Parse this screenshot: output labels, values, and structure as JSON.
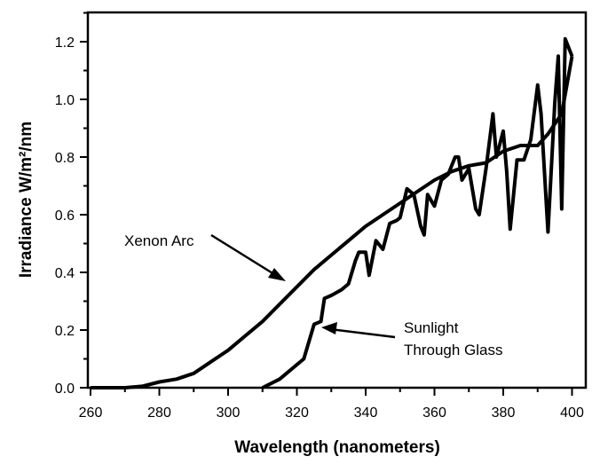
{
  "chart_data": {
    "type": "line",
    "title": "",
    "xlabel": "Wavelength (nanometers)",
    "ylabel": "Irradiance  W/m²/nm",
    "xlim": [
      260,
      404
    ],
    "ylim": [
      0,
      1.3
    ],
    "xticks": [
      260,
      280,
      300,
      320,
      340,
      360,
      380,
      400
    ],
    "yticks": [
      "0.0",
      "0.2",
      "0.4",
      "0.6",
      "0.8",
      "1.0",
      "1.2"
    ],
    "grid": false,
    "series": [
      {
        "name": "Xenon Arc",
        "x": [
          270,
          275,
          280,
          285,
          290,
          295,
          300,
          305,
          310,
          315,
          320,
          325,
          330,
          335,
          340,
          345,
          350,
          355,
          360,
          365,
          370,
          375,
          380,
          385,
          390,
          393,
          397,
          400
        ],
        "y": [
          0,
          0.005,
          0.02,
          0.03,
          0.05,
          0.09,
          0.13,
          0.18,
          0.23,
          0.29,
          0.35,
          0.41,
          0.46,
          0.51,
          0.56,
          0.6,
          0.64,
          0.68,
          0.72,
          0.75,
          0.77,
          0.78,
          0.82,
          0.84,
          0.84,
          0.88,
          0.95,
          1.15
        ]
      },
      {
        "name": "Sunlight Through Glass",
        "x": [
          310,
          315,
          320,
          322,
          325,
          327,
          328,
          330,
          333,
          335,
          337,
          338,
          340,
          341,
          343,
          345,
          347,
          349,
          350,
          352,
          354,
          356,
          357,
          358,
          360,
          362,
          364,
          366,
          367,
          368,
          370,
          372,
          373,
          375,
          377,
          378,
          380,
          381,
          382,
          384,
          386,
          388,
          390,
          391,
          393,
          395,
          396,
          397,
          398,
          400
        ],
        "y": [
          0,
          0.03,
          0.08,
          0.1,
          0.22,
          0.23,
          0.31,
          0.32,
          0.34,
          0.36,
          0.44,
          0.47,
          0.47,
          0.39,
          0.51,
          0.48,
          0.57,
          0.58,
          0.59,
          0.69,
          0.67,
          0.56,
          0.53,
          0.67,
          0.63,
          0.72,
          0.74,
          0.8,
          0.8,
          0.72,
          0.76,
          0.62,
          0.6,
          0.76,
          0.95,
          0.8,
          0.89,
          0.75,
          0.55,
          0.79,
          0.79,
          0.86,
          1.05,
          0.95,
          0.54,
          0.99,
          1.15,
          0.62,
          1.21,
          1.15
        ]
      }
    ],
    "annotations": [
      {
        "text": "Xenon Arc",
        "target_series": "Xenon Arc"
      },
      {
        "text": "Sunlight",
        "text2": "Through Glass",
        "target_series": "Sunlight Through Glass"
      }
    ]
  }
}
